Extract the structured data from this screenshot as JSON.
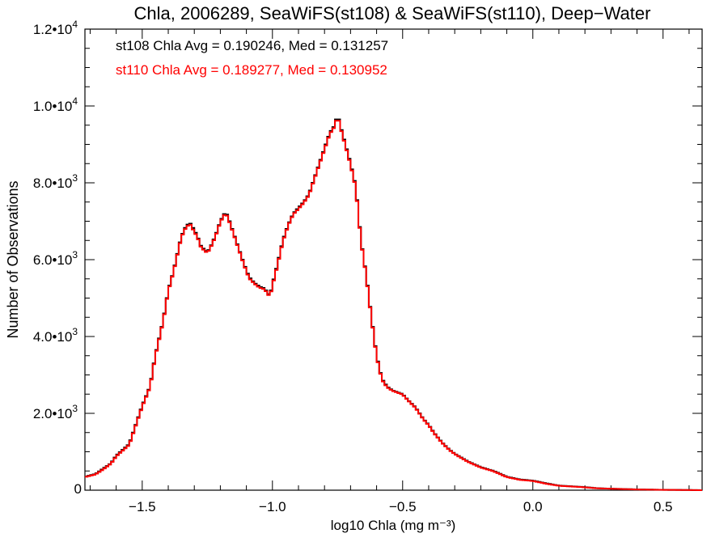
{
  "chart_data": {
    "type": "line",
    "title": "Chla, 2006289, SeaWiFS(st108) & SeaWiFS(st110), Deep−Water",
    "xlabel": "log10 Chla (mg m⁻³)",
    "ylabel": "Number of Observations",
    "xlim": [
      -1.72,
      0.65
    ],
    "ylim": [
      0,
      12000
    ],
    "x_ticks": [
      -1.5,
      -1.0,
      -0.5,
      0.0,
      0.5
    ],
    "x_tick_labels": [
      "−1.5",
      "−1.0",
      "−0.5",
      "0.0",
      "0.5"
    ],
    "y_ticks": [
      0,
      2000,
      4000,
      6000,
      8000,
      10000,
      12000
    ],
    "y_tick_labels": [
      {
        "mantissa": "0",
        "exp": ""
      },
      {
        "mantissa": "2.0•10",
        "exp": "3"
      },
      {
        "mantissa": "4.0•10",
        "exp": "3"
      },
      {
        "mantissa": "6.0•10",
        "exp": "3"
      },
      {
        "mantissa": "8.0•10",
        "exp": "3"
      },
      {
        "mantissa": "1.0•10",
        "exp": "4"
      },
      {
        "mantissa": "1.2•10",
        "exp": "4"
      }
    ],
    "grid": false,
    "legend_position": "top-left",
    "annotations": [
      {
        "text": "st108 Chla Avg = 0.190246, Med = 0.131257",
        "color": "#000000"
      },
      {
        "text": "st110 Chla Avg = 0.189277, Med = 0.130952",
        "color": "#ff0000"
      }
    ],
    "series": [
      {
        "color": "#000000",
        "x": [
          -1.72,
          -1.68,
          -1.65,
          -1.62,
          -1.6,
          -1.55,
          -1.5,
          -1.47,
          -1.45,
          -1.42,
          -1.4,
          -1.38,
          -1.35,
          -1.33,
          -1.31,
          -1.3,
          -1.29,
          -1.28,
          -1.26,
          -1.25,
          -1.24,
          -1.22,
          -1.2,
          -1.18,
          -1.17,
          -1.15,
          -1.13,
          -1.11,
          -1.09,
          -1.07,
          -1.05,
          -1.03,
          -1.01,
          -1.0,
          -0.98,
          -0.96,
          -0.94,
          -0.92,
          -0.9,
          -0.88,
          -0.86,
          -0.84,
          -0.82,
          -0.8,
          -0.78,
          -0.76,
          -0.75,
          -0.74,
          -0.72,
          -0.7,
          -0.68,
          -0.66,
          -0.64,
          -0.62,
          -0.6,
          -0.58,
          -0.56,
          -0.54,
          -0.52,
          -0.5,
          -0.48,
          -0.45,
          -0.42,
          -0.4,
          -0.38,
          -0.35,
          -0.32,
          -0.3,
          -0.25,
          -0.2,
          -0.15,
          -0.1,
          -0.05,
          0.0,
          0.05,
          0.1,
          0.15,
          0.2,
          0.25,
          0.3,
          0.35,
          0.4,
          0.5,
          0.6,
          0.65
        ],
        "y": [
          350,
          420,
          560,
          700,
          900,
          1200,
          2200,
          2700,
          3500,
          4400,
          5200,
          5700,
          6600,
          6900,
          6950,
          6700,
          6700,
          6400,
          6250,
          6200,
          6300,
          6600,
          7000,
          7250,
          7100,
          6700,
          6300,
          5900,
          5550,
          5400,
          5300,
          5250,
          5050,
          5350,
          5900,
          6500,
          6900,
          7200,
          7350,
          7500,
          7700,
          8100,
          8500,
          8900,
          9300,
          9500,
          9800,
          9500,
          9000,
          8500,
          7900,
          6500,
          5600,
          4500,
          3500,
          2900,
          2700,
          2600,
          2550,
          2500,
          2350,
          2150,
          1850,
          1700,
          1500,
          1250,
          1050,
          950,
          750,
          600,
          500,
          350,
          280,
          250,
          180,
          120,
          100,
          80,
          50,
          40,
          30,
          20,
          10,
          5,
          0
        ]
      },
      {
        "color": "#ff0000",
        "x": [
          -1.72,
          -1.68,
          -1.65,
          -1.62,
          -1.6,
          -1.55,
          -1.5,
          -1.47,
          -1.45,
          -1.42,
          -1.4,
          -1.38,
          -1.35,
          -1.33,
          -1.31,
          -1.3,
          -1.29,
          -1.28,
          -1.26,
          -1.25,
          -1.24,
          -1.22,
          -1.2,
          -1.18,
          -1.17,
          -1.15,
          -1.13,
          -1.11,
          -1.09,
          -1.07,
          -1.05,
          -1.03,
          -1.01,
          -1.0,
          -0.98,
          -0.96,
          -0.94,
          -0.92,
          -0.9,
          -0.88,
          -0.86,
          -0.84,
          -0.82,
          -0.8,
          -0.78,
          -0.76,
          -0.75,
          -0.74,
          -0.72,
          -0.7,
          -0.68,
          -0.66,
          -0.64,
          -0.62,
          -0.6,
          -0.58,
          -0.56,
          -0.54,
          -0.52,
          -0.5,
          -0.48,
          -0.45,
          -0.42,
          -0.4,
          -0.38,
          -0.35,
          -0.32,
          -0.3,
          -0.25,
          -0.2,
          -0.15,
          -0.1,
          -0.05,
          0.0,
          0.05,
          0.1,
          0.15,
          0.2,
          0.25,
          0.3,
          0.35,
          0.4,
          0.5,
          0.6,
          0.65
        ],
        "y": [
          340,
          410,
          540,
          690,
          880,
          1180,
          2180,
          2680,
          3480,
          4380,
          5180,
          5680,
          6580,
          6870,
          6920,
          6650,
          6680,
          6380,
          6220,
          6180,
          6280,
          6580,
          6980,
          7220,
          7070,
          6680,
          6280,
          5880,
          5520,
          5380,
          5270,
          5230,
          5030,
          5320,
          5870,
          6470,
          6880,
          7180,
          7320,
          7480,
          7680,
          8080,
          8480,
          8870,
          9270,
          9470,
          9760,
          9470,
          8970,
          8470,
          7870,
          6480,
          5580,
          4480,
          3480,
          2880,
          2680,
          2590,
          2540,
          2490,
          2340,
          2140,
          1840,
          1690,
          1490,
          1240,
          1040,
          940,
          740,
          590,
          490,
          340,
          270,
          240,
          170,
          115,
          95,
          75,
          48,
          38,
          28,
          18,
          9,
          4,
          0
        ]
      }
    ]
  }
}
